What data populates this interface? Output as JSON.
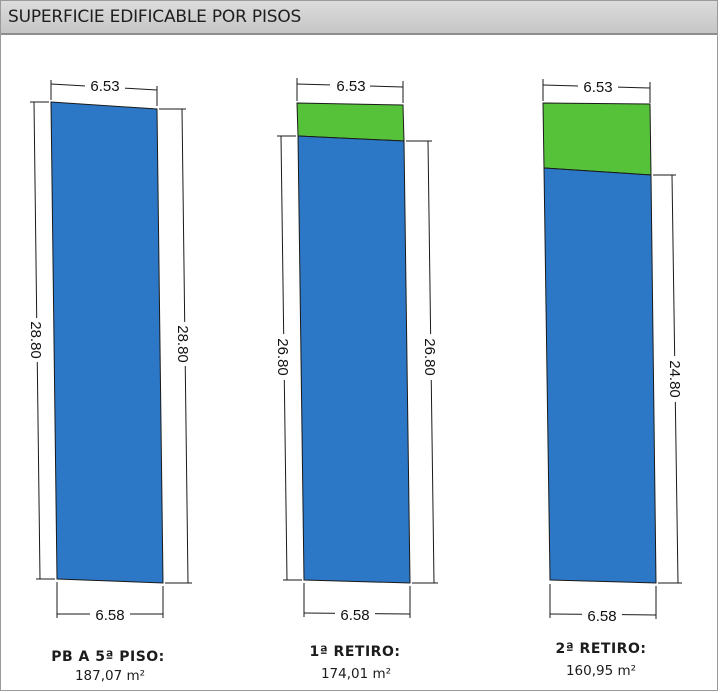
{
  "header": {
    "title": "SUPERFICIE EDIFICABLE POR PISOS"
  },
  "colors": {
    "blue": "#2c77c6",
    "green": "#56c23a",
    "outline": "#1a1a1a"
  },
  "plans": [
    {
      "name": "PB A 5ª PISO:",
      "area": "187,07 m²",
      "top_width": "6.53",
      "bottom_width": "6.58",
      "left_depth": "28.80",
      "right_depth": "28.80"
    },
    {
      "name": "1ª RETIRO:",
      "area": "174,01 m²",
      "top_width": "6.53",
      "bottom_width": "6.58",
      "left_depth": "26.80",
      "right_depth": "26.80"
    },
    {
      "name": "2ª RETIRO:",
      "area": "160,95 m²",
      "top_width": "6.53",
      "bottom_width": "6.58",
      "left_depth": "",
      "right_depth": "24.80"
    }
  ]
}
